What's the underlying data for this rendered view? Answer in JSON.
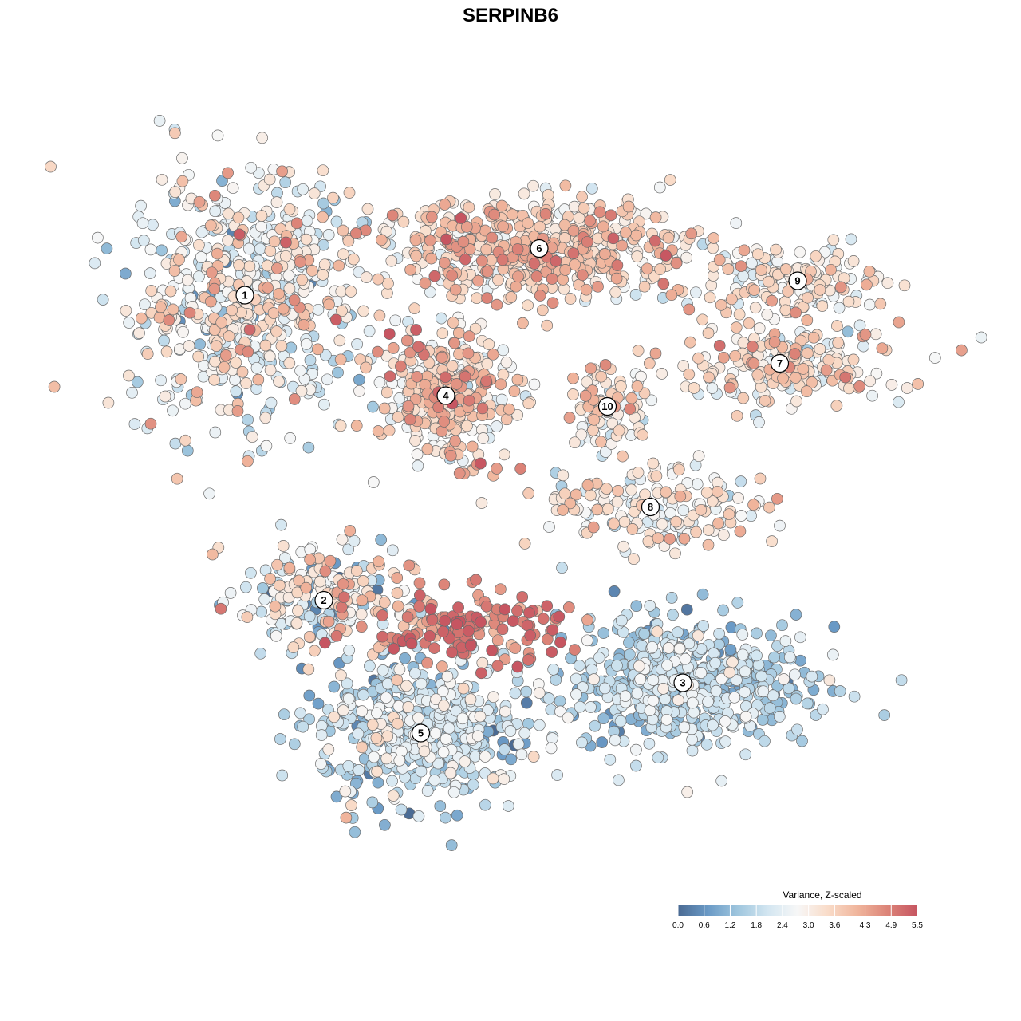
{
  "chart_data": {
    "type": "scatter",
    "title": "SERPINB6",
    "xlabel": "",
    "ylabel": "",
    "grid": false,
    "axes_visible": false,
    "color_scale": {
      "title": "Variance, Z-scaled",
      "min": 0.0,
      "max": 5.5,
      "ticks": [
        "0.0",
        "0.6",
        "1.2",
        "1.8",
        "2.4",
        "3.0",
        "3.6",
        "4.3",
        "4.9",
        "5.5"
      ],
      "tick_values": [
        0.0,
        0.6,
        1.2,
        1.8,
        2.4,
        3.0,
        3.6,
        4.3,
        4.9,
        5.5
      ],
      "stops": [
        "#4a6a93",
        "#6a9ac6",
        "#9fc6de",
        "#d3e6f1",
        "#f7f7f7",
        "#f9dcc9",
        "#f0b59c",
        "#dc8478",
        "#c65561"
      ],
      "placement": "bottom-right"
    },
    "clusters": [
      {
        "label": "1",
        "x": -7.4,
        "y": 6.0,
        "spread_x": 1.6,
        "spread_y": 1.7,
        "n": 620,
        "mean": 2.7,
        "sd": 0.9
      },
      {
        "label": "6",
        "x": 0.8,
        "y": 7.3,
        "spread_x": 2.3,
        "spread_y": 0.7,
        "n": 560,
        "mean": 3.5,
        "sd": 0.7
      },
      {
        "label": "9",
        "x": 8.0,
        "y": 6.4,
        "spread_x": 1.2,
        "spread_y": 0.5,
        "n": 140,
        "mean": 3.0,
        "sd": 0.6
      },
      {
        "label": "7",
        "x": 7.5,
        "y": 4.1,
        "spread_x": 1.7,
        "spread_y": 0.6,
        "n": 210,
        "mean": 3.2,
        "sd": 0.7
      },
      {
        "label": "4",
        "x": -1.8,
        "y": 3.2,
        "spread_x": 0.9,
        "spread_y": 0.9,
        "n": 330,
        "mean": 3.4,
        "sd": 0.9
      },
      {
        "label": "10",
        "x": 2.7,
        "y": 2.9,
        "spread_x": 0.6,
        "spread_y": 0.6,
        "n": 90,
        "mean": 3.3,
        "sd": 0.6
      },
      {
        "label": "8",
        "x": 3.9,
        "y": 0.1,
        "spread_x": 1.6,
        "spread_y": 0.6,
        "n": 170,
        "mean": 3.1,
        "sd": 0.7
      },
      {
        "label": "2",
        "x": -5.2,
        "y": -2.5,
        "spread_x": 1.2,
        "spread_y": 0.8,
        "n": 210,
        "mean": 2.6,
        "sd": 1.2
      },
      {
        "label": "3",
        "x": 4.8,
        "y": -4.8,
        "spread_x": 1.7,
        "spread_y": 0.9,
        "n": 560,
        "mean": 1.7,
        "sd": 0.6
      },
      {
        "label": "5",
        "x": -2.5,
        "y": -6.2,
        "spread_x": 1.4,
        "spread_y": 1.0,
        "n": 520,
        "mean": 1.9,
        "sd": 0.7
      }
    ],
    "hotspot": {
      "x": -1.2,
      "y": -3.3,
      "spread_x": 1.3,
      "spread_y": 0.5,
      "n": 140,
      "mean": 4.8,
      "sd": 0.5
    },
    "xlim": [
      -12,
      12
    ],
    "ylim": [
      -12,
      12
    ]
  }
}
